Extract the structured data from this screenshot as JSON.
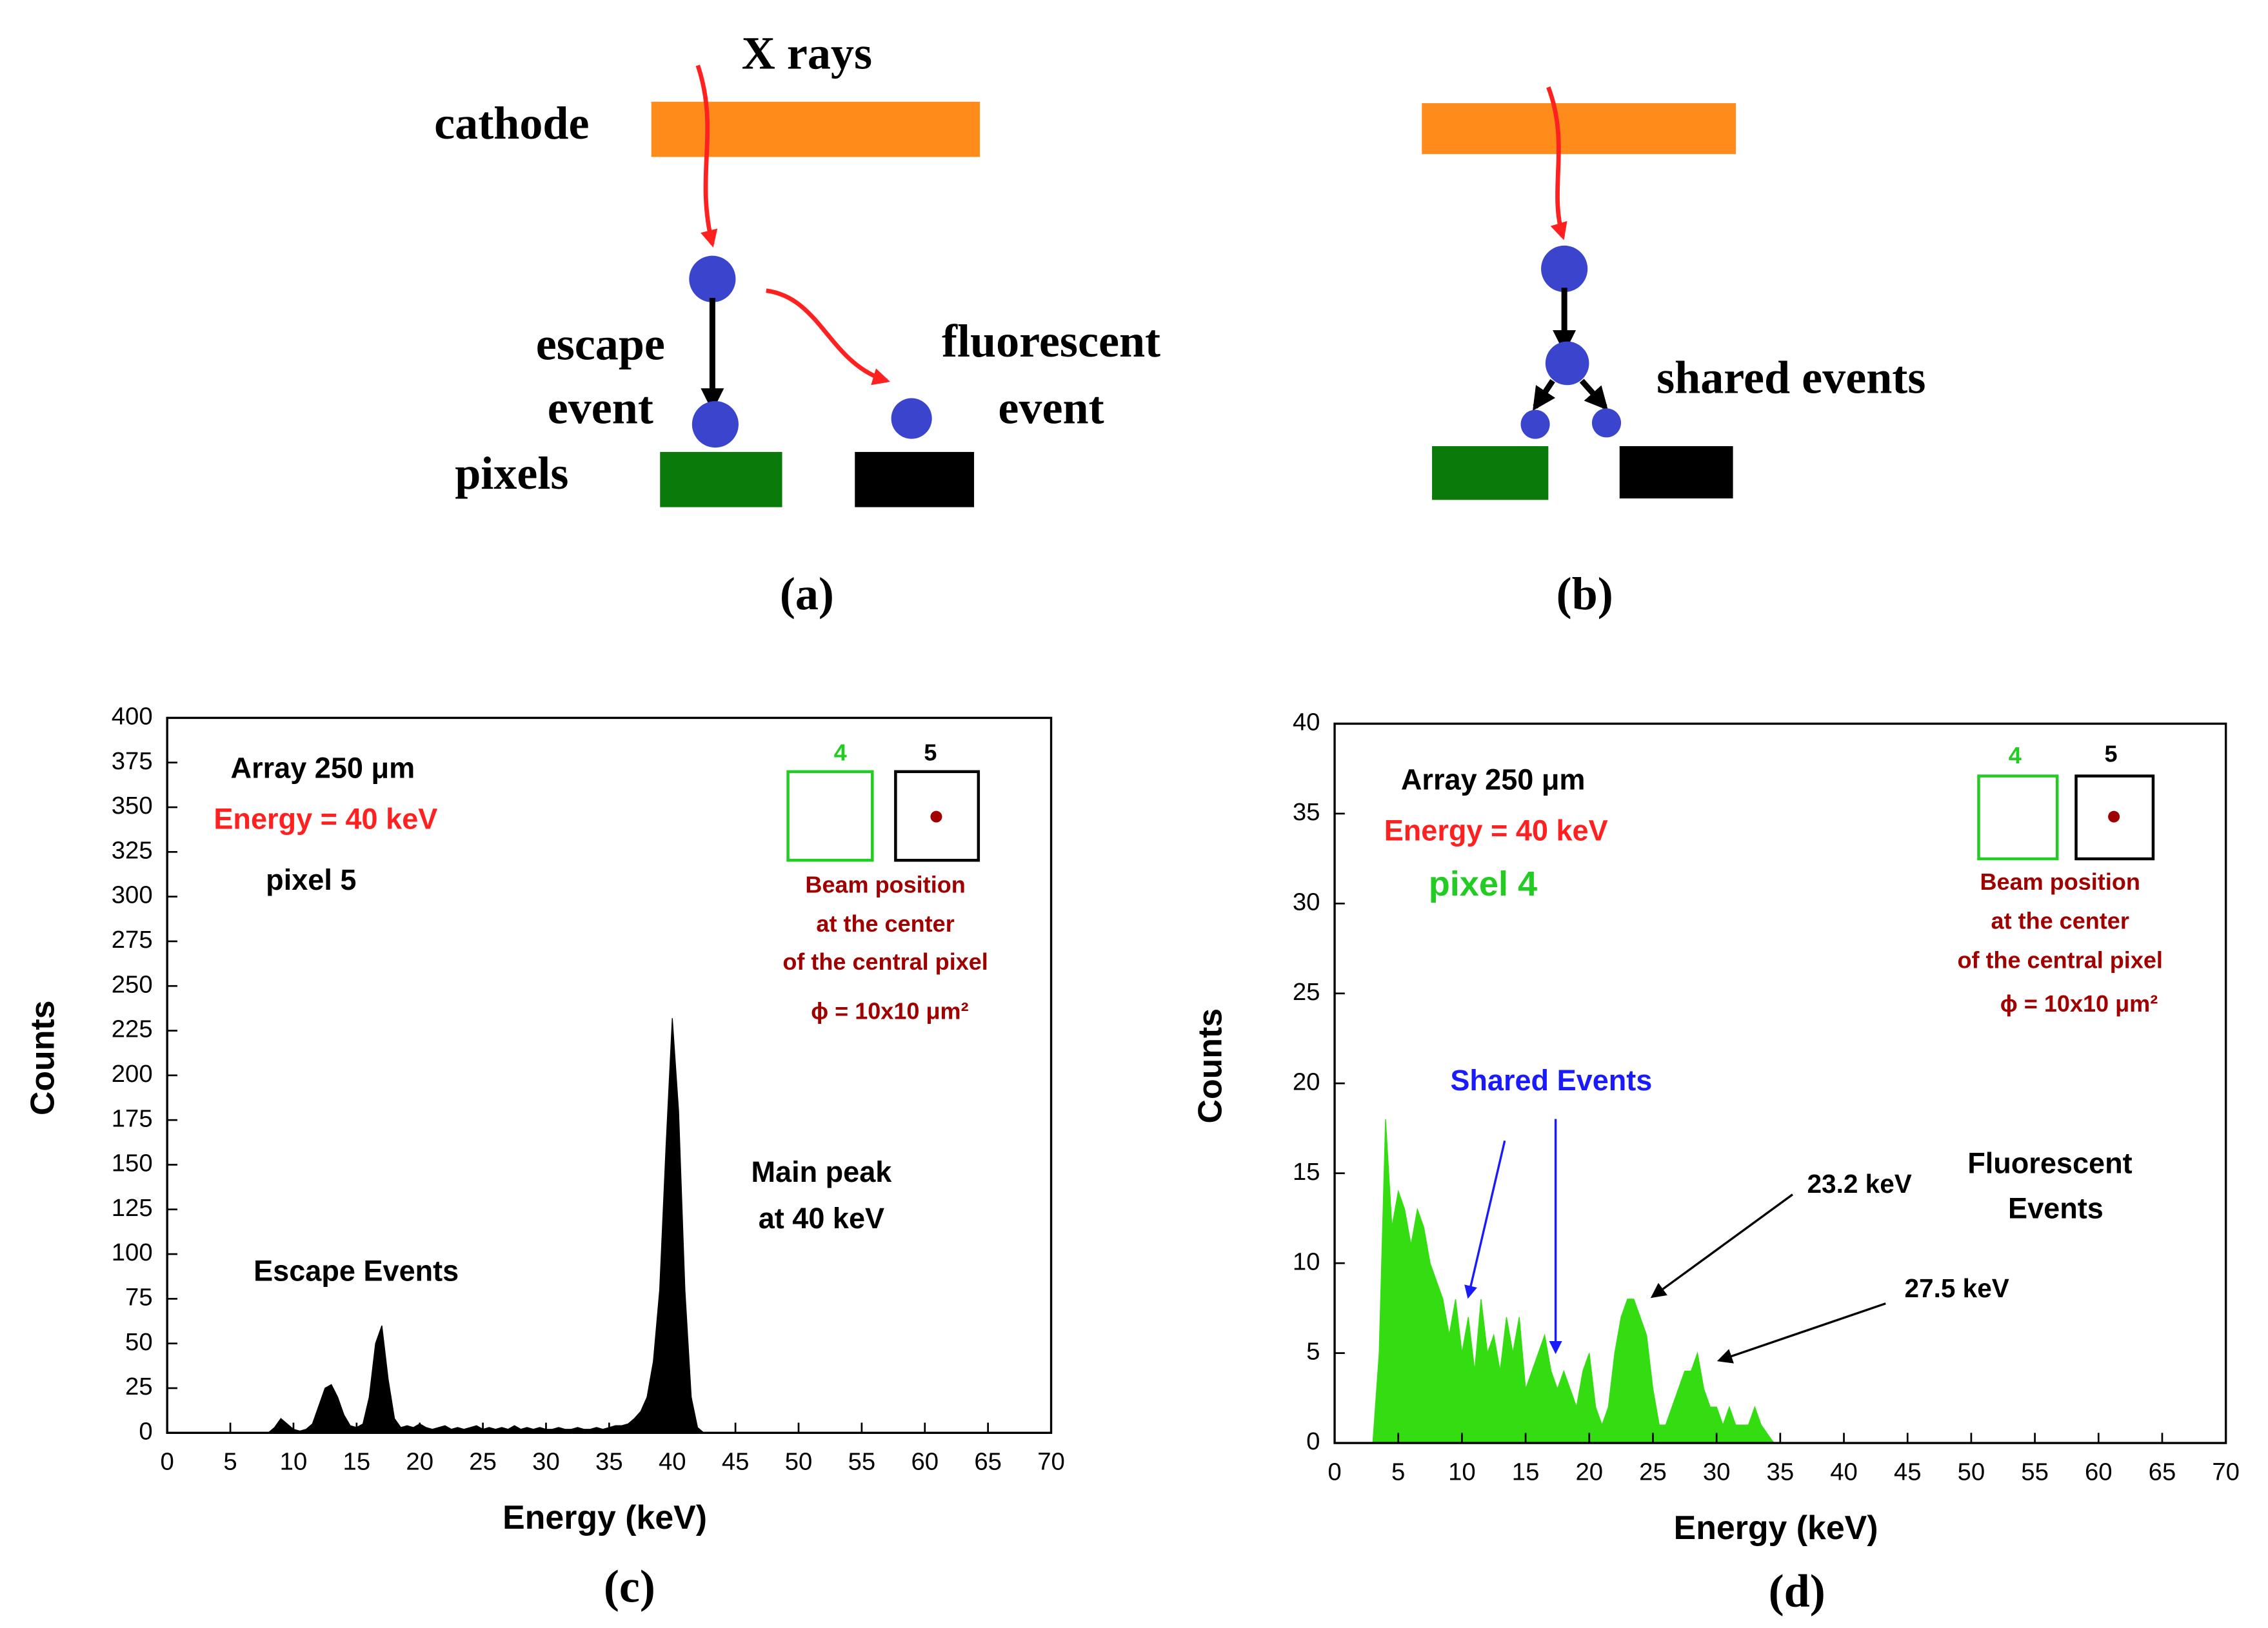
{
  "diagram_a": {
    "labels": [
      "X rays",
      "cathode",
      "escape",
      "event",
      "fluorescent",
      "event",
      "pixels"
    ],
    "caption": "(a)"
  },
  "diagram_b": {
    "labels": [
      "shared events"
    ],
    "caption": "(b)"
  },
  "chart_data": [
    {
      "type": "area",
      "caption": "(c)",
      "xlabel": "Energy (keV)",
      "ylabel": "Counts",
      "color": "#000000",
      "x": [
        8,
        8.5,
        9,
        9.5,
        10,
        10.5,
        11,
        11.5,
        12,
        12.5,
        13,
        13.5,
        14,
        14.5,
        15,
        15.5,
        16,
        16.5,
        17,
        17.5,
        18,
        18.5,
        19,
        19.5,
        20,
        20.5,
        21,
        21.5,
        22,
        22.5,
        23,
        23.5,
        24,
        24.5,
        25,
        25.5,
        26,
        26.5,
        27,
        27.5,
        28,
        28.5,
        29,
        29.5,
        30,
        30.5,
        31,
        31.5,
        32,
        32.5,
        33,
        33.5,
        34,
        34.5,
        35,
        35.5,
        36,
        36.5,
        37,
        37.5,
        38,
        38.5,
        39,
        39.5,
        40,
        40.5,
        41,
        41.5,
        42,
        42.5
      ],
      "values": [
        0,
        3,
        8,
        5,
        2,
        1,
        2,
        5,
        15,
        25,
        27,
        20,
        10,
        4,
        3,
        5,
        20,
        50,
        60,
        30,
        8,
        3,
        4,
        3,
        5,
        3,
        2,
        3,
        4,
        2,
        3,
        2,
        3,
        4,
        2,
        3,
        2,
        3,
        2,
        4,
        2,
        3,
        2,
        3,
        2,
        2,
        3,
        2,
        2,
        3,
        2,
        2,
        3,
        2,
        3,
        4,
        4,
        5,
        8,
        12,
        20,
        40,
        80,
        160,
        232,
        180,
        80,
        20,
        3,
        0
      ],
      "xlim": [
        0,
        70
      ],
      "xticks": [
        0,
        5,
        10,
        15,
        20,
        25,
        30,
        35,
        40,
        45,
        50,
        55,
        60,
        65,
        70
      ],
      "ylim": [
        0,
        400
      ],
      "yticks": [
        0,
        25,
        50,
        75,
        100,
        125,
        150,
        175,
        200,
        225,
        250,
        275,
        300,
        325,
        350,
        375,
        400
      ],
      "annotations": [
        "Array 250 μm",
        "Energy = 40 keV",
        "pixel 5",
        "Escape Events",
        "Main peak",
        "at 40 keV"
      ],
      "inset": {
        "labels": [
          "4",
          "5"
        ],
        "caption": [
          "Beam position",
          "at the center",
          "of the central pixel",
          "ϕ = 10x10 μm²"
        ]
      }
    },
    {
      "type": "area",
      "caption": "(d)",
      "xlabel": "Energy (keV)",
      "ylabel": "Counts",
      "color": "#33dd11",
      "x": [
        3,
        3.5,
        4,
        4.5,
        5,
        5.5,
        6,
        6.5,
        7,
        7.5,
        8,
        8.5,
        9,
        9.5,
        10,
        10.5,
        11,
        11.5,
        12,
        12.5,
        13,
        13.5,
        14,
        14.5,
        15,
        15.5,
        16,
        16.5,
        17,
        17.5,
        18,
        18.5,
        19,
        19.5,
        20,
        20.5,
        21,
        21.5,
        22,
        22.5,
        23,
        23.5,
        24,
        24.5,
        25,
        25.5,
        26,
        26.5,
        27,
        27.5,
        28,
        28.5,
        29,
        29.5,
        30,
        30.5,
        31,
        31.5,
        32,
        32.5,
        33,
        33.5,
        34,
        34.5,
        35
      ],
      "values": [
        0,
        5,
        18,
        12,
        14,
        13,
        11,
        13,
        12,
        10,
        9,
        8,
        6,
        8,
        5,
        7,
        4,
        8,
        5,
        6,
        4,
        7,
        5,
        7,
        3,
        4,
        5,
        6,
        4,
        3,
        4,
        3,
        2,
        4,
        5,
        2,
        1,
        2,
        5,
        7,
        8,
        8,
        7,
        6,
        3,
        1,
        1,
        2,
        3,
        4,
        4,
        5,
        3,
        2,
        2,
        1,
        2,
        1,
        1,
        1,
        2,
        1,
        0.5,
        0,
        0
      ],
      "xlim": [
        0,
        70
      ],
      "xticks": [
        0,
        5,
        10,
        15,
        20,
        25,
        30,
        35,
        40,
        45,
        50,
        55,
        60,
        65,
        70
      ],
      "ylim": [
        0,
        40
      ],
      "yticks": [
        0,
        5,
        10,
        15,
        20,
        25,
        30,
        35,
        40
      ],
      "annotations": [
        "Array 250 μm",
        "Energy = 40 keV",
        "pixel 4",
        "Shared Events",
        "Fluorescent",
        "Events",
        "23.2 keV",
        "27.5 keV"
      ],
      "inset": {
        "labels": [
          "4",
          "5"
        ],
        "caption": [
          "Beam position",
          "at the center",
          "of the central pixel",
          "ϕ = 10x10 μm²"
        ]
      }
    }
  ]
}
